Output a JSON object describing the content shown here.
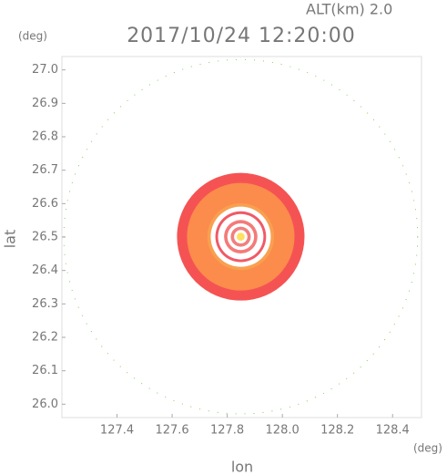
{
  "chart_data": {
    "type": "rings",
    "altitude_label": "ALT(km) 2.0",
    "title": "2017/10/24 12:20:00",
    "x_label": "lon",
    "y_label": "lat",
    "x_unit": "(deg)",
    "y_unit": "(deg)",
    "xlim": [
      127.2,
      128.505
    ],
    "ylim": [
      25.96,
      27.04
    ],
    "xticks": [
      127.4,
      127.6,
      127.8,
      {
        "value": 128.0,
        "label": "128.0"
      },
      128.2,
      128.4
    ],
    "yticks": [
      {
        "value": 26.0,
        "label": "26.0"
      },
      26.1,
      26.2,
      26.3,
      26.4,
      26.5,
      26.6,
      26.7,
      26.8,
      26.9,
      {
        "value": 27.0,
        "label": "27.0"
      }
    ],
    "center": [
      127.849,
      26.501
    ],
    "range_circle": {
      "radius": 0.53,
      "color": "#7ccf5a"
    },
    "rings": [
      {
        "radius": 0.191,
        "color": "#f55353"
      },
      {
        "radius": 0.161,
        "color": "#fb8c4c"
      },
      {
        "radius": 0.1,
        "color": "#f9a050"
      },
      {
        "radius": 0.09,
        "color": "#ffffff"
      },
      {
        "radius": 0.076,
        "color": "#f05a66"
      },
      {
        "radius": 0.068,
        "color": "#ffffff"
      },
      {
        "radius": 0.05,
        "color": "#f57a7a"
      },
      {
        "radius": 0.04,
        "color": "#ffffff"
      },
      {
        "radius": 0.03,
        "color": "#f08080"
      },
      {
        "radius": 0.02,
        "color": "#ffffff"
      },
      {
        "radius": 0.012,
        "color": "#ffe060"
      }
    ]
  }
}
